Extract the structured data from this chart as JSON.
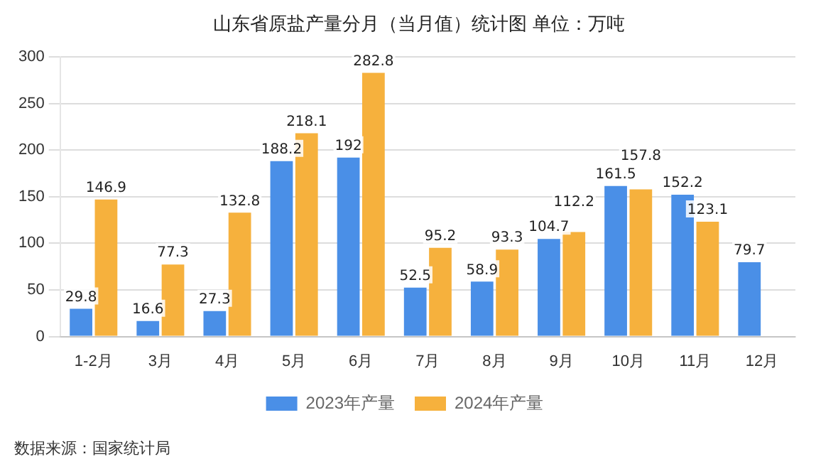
{
  "chart_data": {
    "type": "bar",
    "title": "山东省原盐产量分月（当月值）统计图 单位：万吨",
    "categories": [
      "1-2月",
      "3月",
      "4月",
      "5月",
      "6月",
      "7月",
      "8月",
      "9月",
      "10月",
      "11月",
      "12月"
    ],
    "series": [
      {
        "name": "2023年产量",
        "color": "#4a8fe7",
        "values": [
          29.8,
          16.6,
          27.3,
          188.2,
          192,
          52.5,
          58.9,
          104.7,
          161.5,
          152.2,
          79.7
        ]
      },
      {
        "name": "2024年产量",
        "color": "#f6b13d",
        "values": [
          146.9,
          77.3,
          132.8,
          218.1,
          282.8,
          95.2,
          93.3,
          112.2,
          157.8,
          123.1,
          null
        ]
      }
    ],
    "ylim": [
      0,
      300
    ],
    "yticks": [
      0,
      50,
      100,
      150,
      200,
      250,
      300
    ],
    "grid": "y",
    "legend": "bottom",
    "data_labels": true,
    "annotations": [
      "数据来源：国家统计局"
    ]
  }
}
